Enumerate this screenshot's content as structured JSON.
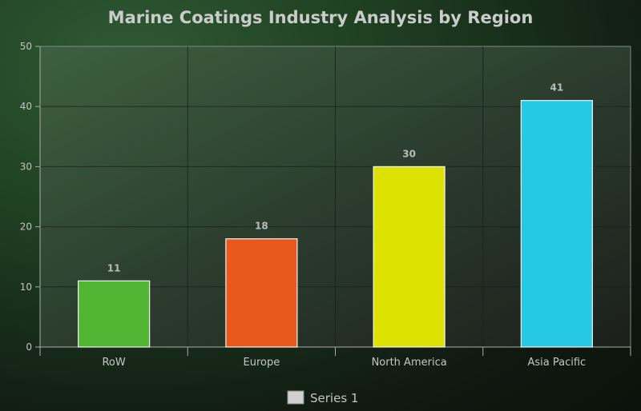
{
  "chart_data": {
    "type": "bar",
    "title": "Marine Coatings Industry Analysis by Region",
    "xlabel": "",
    "ylabel": "",
    "categories": [
      "RoW",
      "Europe",
      "North America",
      "Asia Pacific"
    ],
    "series": [
      {
        "name": "Series 1",
        "values": [
          11,
          18,
          30,
          41
        ],
        "colors": [
          "#52b634",
          "#e9581d",
          "#dee200",
          "#25c9e3"
        ]
      }
    ],
    "ylim": [
      0,
      50
    ],
    "yticks": [
      0,
      10,
      20,
      30,
      40,
      50
    ],
    "grid": true,
    "data_labels": true,
    "legend": {
      "position": "bottom-center",
      "swatch_color": "#cfd1cf"
    }
  }
}
